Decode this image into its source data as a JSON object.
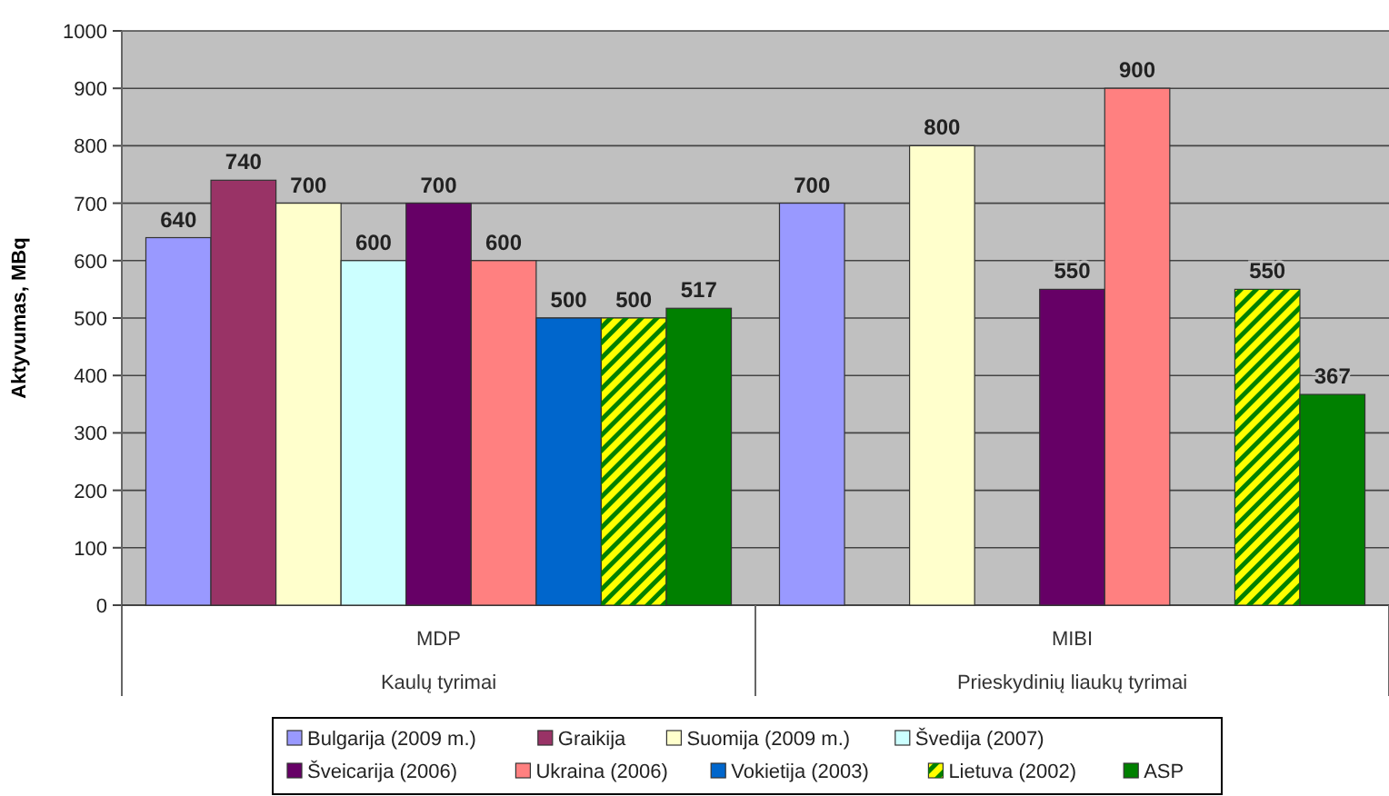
{
  "chart_data": {
    "type": "bar",
    "ylabel": "Aktyvumas, MBq",
    "categories": [
      "MDP",
      "MIBI"
    ],
    "series": [
      {
        "name": "Bulgarija (2009 m.)",
        "color": "#9999ff",
        "values": [
          640,
          700
        ]
      },
      {
        "name": "Graikija",
        "color": "#993366",
        "values": [
          740,
          null
        ]
      },
      {
        "name": "Suomija (2009 m.)",
        "color": "#ffffcc",
        "values": [
          700,
          800
        ]
      },
      {
        "name": "Švedija (2007)",
        "color": "#ccffff",
        "values": [
          600,
          null
        ]
      },
      {
        "name": "Šveicarija (2006)",
        "color": "#660066",
        "values": [
          700,
          550
        ]
      },
      {
        "name": "Ukraina (2006)",
        "color": "#ff8080",
        "values": [
          600,
          900
        ]
      },
      {
        "name": "Vokietija (2003)",
        "color": "#0066cc",
        "values": [
          500,
          null
        ]
      },
      {
        "name": "Lietuva (2002)",
        "color": "#ffff00",
        "values": [
          500,
          550
        ]
      },
      {
        "name": "ASP",
        "color": "#008000",
        "values": [
          517,
          367
        ]
      }
    ],
    "annotations": [
      "Kaulų tyrimai",
      "Prieskydinių liaukų tyrimai"
    ],
    "ylim": [
      0,
      1000
    ],
    "yticks": [
      0,
      100,
      200,
      300,
      400,
      500,
      600,
      700,
      800,
      900,
      1000
    ],
    "grid": "y",
    "legend": "bottom",
    "data_labels": true
  }
}
